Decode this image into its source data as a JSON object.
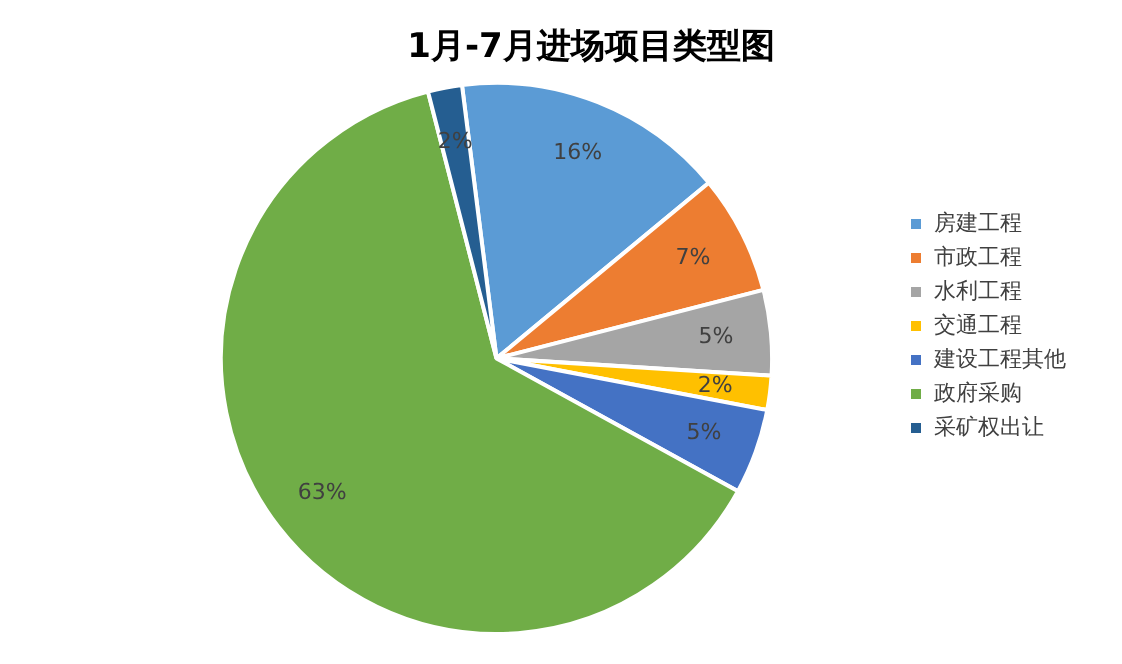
{
  "chart_data": {
    "type": "pie",
    "title": "1月-7月进场项目类型图",
    "categories": [
      "房建工程",
      "市政工程",
      "水利工程",
      "交通工程",
      "建设工程其他",
      "政府采购",
      "采矿权出让"
    ],
    "values": [
      16,
      7,
      5,
      2,
      5,
      63,
      2
    ],
    "colors": [
      "#5b9bd5",
      "#ed7d31",
      "#a5a5a5",
      "#ffc000",
      "#4472c4",
      "#70ad47",
      "#255e91"
    ],
    "value_labels": [
      "16%",
      "7%",
      "5%",
      "2%",
      "5%",
      "63%",
      "2%"
    ],
    "legend": "right"
  }
}
